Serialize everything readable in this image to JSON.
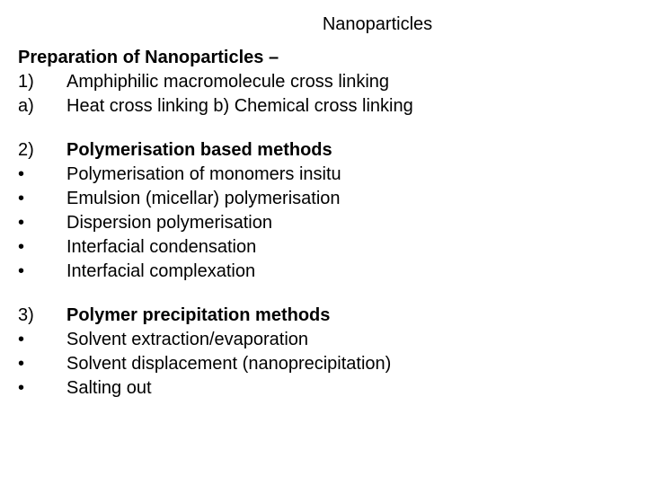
{
  "title": "Nanoparticles",
  "heading": "Preparation of Nanoparticles –",
  "section1": {
    "marker1": "1)",
    "item1": "Amphiphilic macromolecule cross linking",
    "marker2": "a)",
    "item2": "Heat cross linking  b) Chemical cross linking"
  },
  "section2": {
    "marker": "2)",
    "title": "Polymerisation based methods",
    "bullets": {
      "m": "•",
      "b1": "Polymerisation of monomers insitu",
      "b2": "Emulsion (micellar) polymerisation",
      "b3": "Dispersion polymerisation",
      "b4": "Interfacial condensation",
      "b5": "Interfacial complexation"
    }
  },
  "section3": {
    "marker": "3)",
    "title": "Polymer precipitation methods",
    "bullets": {
      "m": "•",
      "b1": "Solvent extraction/evaporation",
      "b2": "Solvent displacement (nanoprecipitation)",
      "b3": "Salting out"
    }
  }
}
